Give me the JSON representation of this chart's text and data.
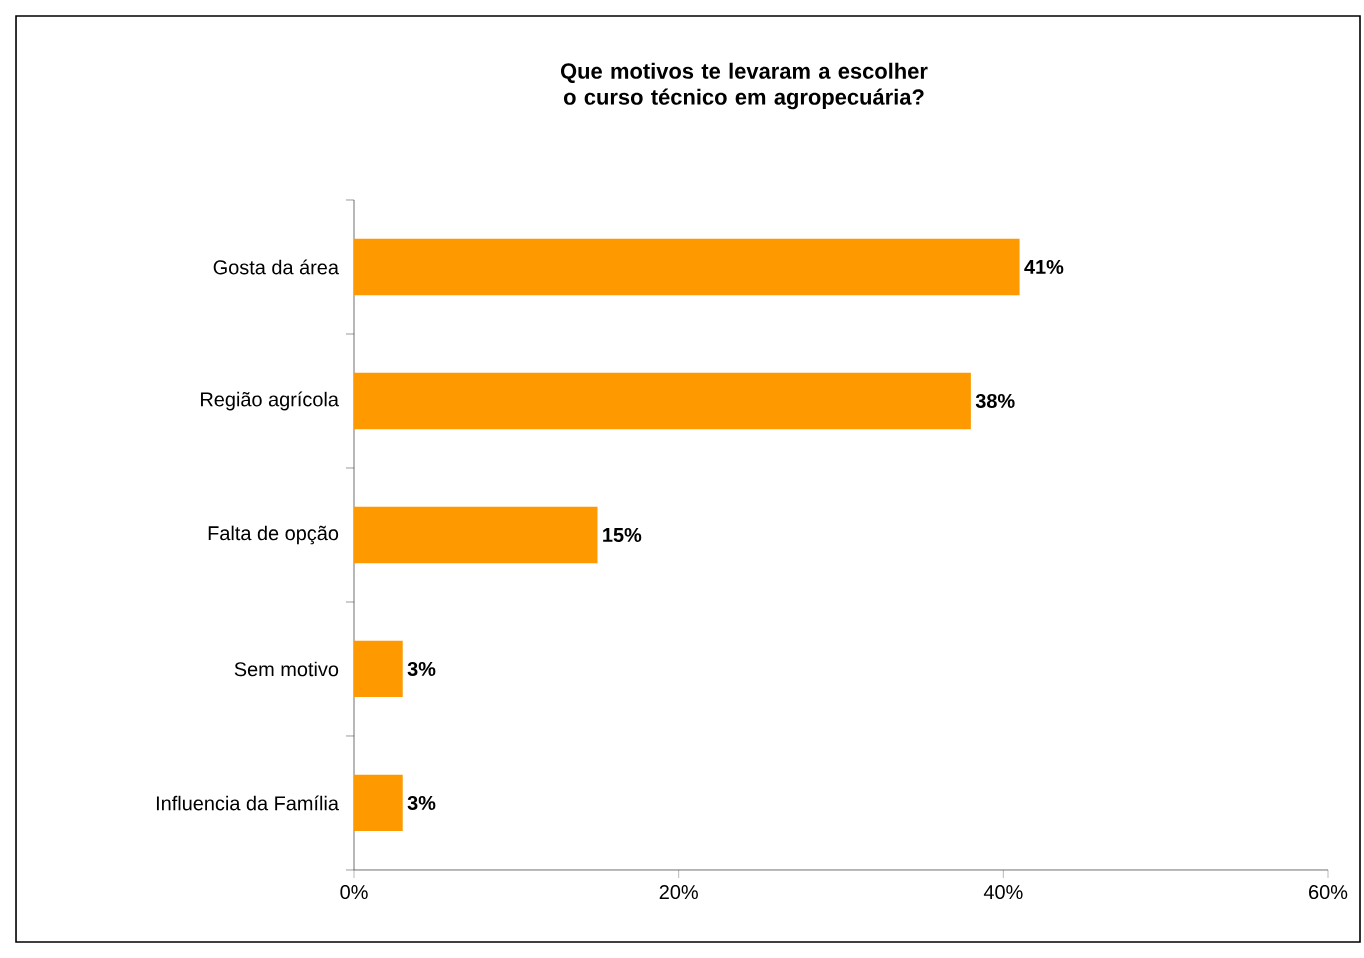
{
  "chart_data": {
    "type": "bar",
    "orientation": "horizontal",
    "title": "Que motivos te levaram a escolher o curso técnico em agropecuária?",
    "categories": [
      "Gosta da área",
      "Região agrícola",
      "Falta de opção",
      "Sem motivo",
      "Influencia da Família"
    ],
    "values": [
      41,
      38,
      15,
      3,
      3
    ],
    "value_labels": [
      "41%",
      "38%",
      "15%",
      "3%",
      "3%"
    ],
    "color": "#ff9900",
    "xlim": [
      0,
      60
    ],
    "xticks": [
      {
        "value": 0,
        "label": "0%"
      },
      {
        "value": 20,
        "label": "20%"
      },
      {
        "value": 40,
        "label": "40%"
      },
      {
        "value": 60,
        "label": "60%"
      }
    ],
    "grid": false
  }
}
